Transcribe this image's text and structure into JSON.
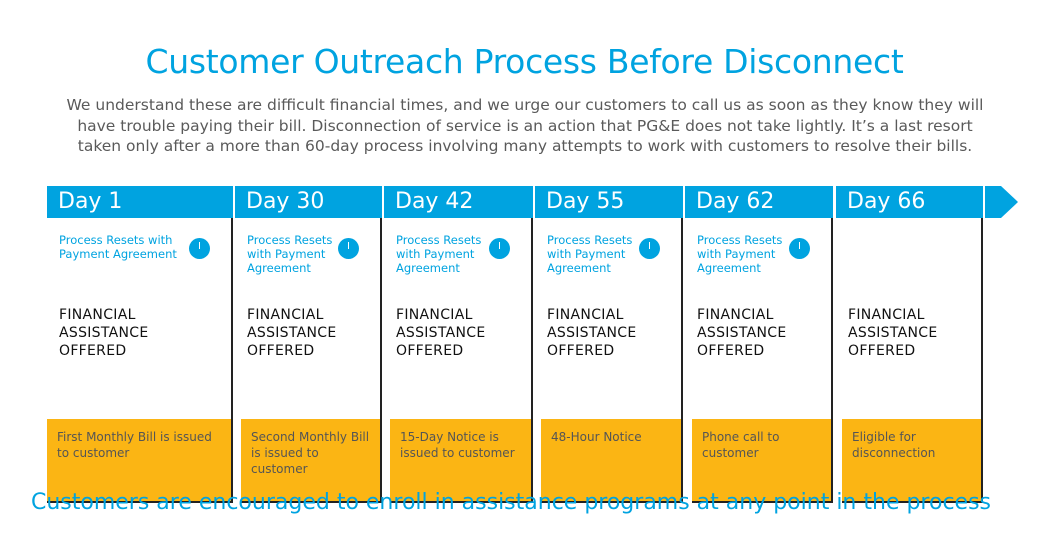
{
  "title": "Customer Outreach Process Before Disconnect",
  "intro": "We understand these are difficult financial times, and we urge our customers to call us as soon as they know they will have trouble paying their bill. Disconnection of service is an action that PG&E does not take lightly. It’s a last resort taken only after a more than 60-day process involving many attempts to work with customers to resolve their bills.",
  "footer": "Customers are encouraged to enroll in assistance programs at any point in the process",
  "colors": {
    "accent": "#00a3e0",
    "step": "#fbb514"
  },
  "timeline": [
    {
      "day": "Day 1",
      "reset": "Process Resets with Payment Agreement",
      "clock_icon": "clock-icon",
      "assistance": "FINANCIAL ASSISTANCE OFFERED",
      "step": "First Monthly Bill is issued to customer"
    },
    {
      "day": "Day 30",
      "reset": "Process Resets with Payment Agreement",
      "clock_icon": "clock-icon",
      "assistance": "FINANCIAL ASSISTANCE OFFERED",
      "step": "Second Monthly Bill is issued to customer"
    },
    {
      "day": "Day 42",
      "reset": "Process Resets with Payment Agreement",
      "clock_icon": "clock-icon",
      "assistance": "FINANCIAL ASSISTANCE OFFERED",
      "step": "15-Day Notice is issued to customer"
    },
    {
      "day": "Day 55",
      "reset": "Process Resets with Payment Agreement",
      "clock_icon": "clock-icon",
      "assistance": "FINANCIAL ASSISTANCE OFFERED",
      "step": "48-Hour Notice"
    },
    {
      "day": "Day 62",
      "reset": "Process Resets with Payment Agreement",
      "clock_icon": "clock-icon",
      "assistance": "FINANCIAL ASSISTANCE OFFERED",
      "step": "Phone call to customer"
    },
    {
      "day": "Day 66",
      "reset": "",
      "assistance": "FINANCIAL ASSISTANCE OFFERED",
      "step": "Eligible for disconnection"
    }
  ]
}
